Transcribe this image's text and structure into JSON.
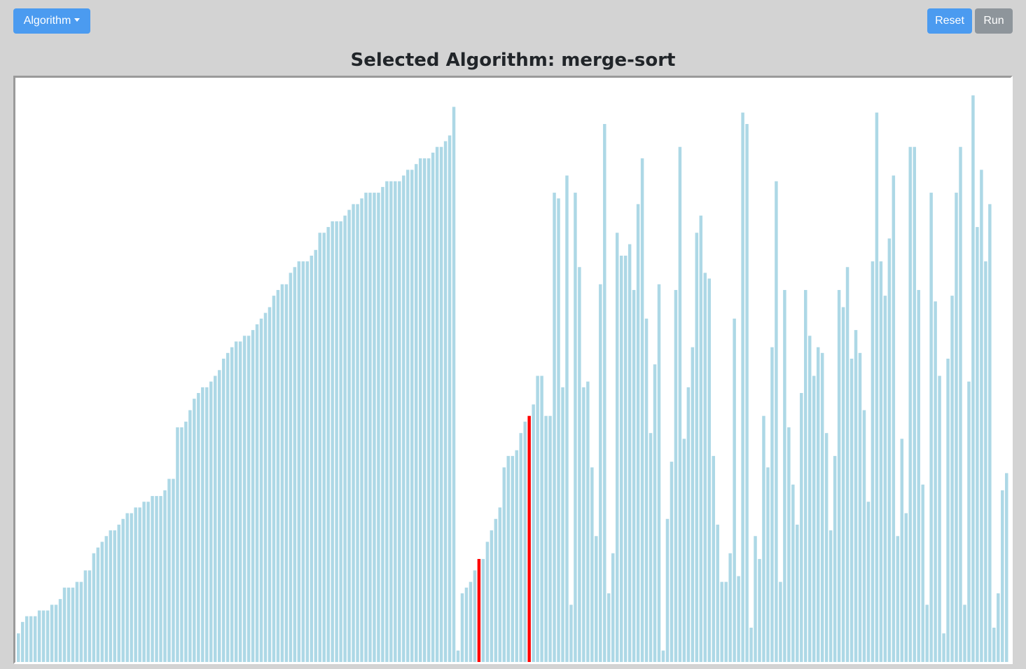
{
  "toolbar": {
    "algorithm_label": "Algorithm",
    "reset_label": "Reset",
    "run_label": "Run"
  },
  "header": {
    "title": "Selected Algorithm: merge-sort"
  },
  "colors": {
    "bar": "#add8e6",
    "bar_active": "#ff0000",
    "primary": "#4b9bf0",
    "secondary": "#8e959b",
    "background": "#d3d3d3"
  },
  "chart_data": {
    "type": "bar",
    "ylim": [
      0,
      100
    ],
    "highlighted_indices": [
      110,
      122
    ],
    "values": [
      5,
      7,
      8,
      8,
      8,
      9,
      9,
      9,
      10,
      10,
      11,
      13,
      13,
      13,
      14,
      14,
      16,
      16,
      19,
      20,
      21,
      22,
      23,
      23,
      24,
      25,
      26,
      26,
      27,
      27,
      28,
      28,
      29,
      29,
      29,
      30,
      32,
      32,
      41,
      41,
      42,
      44,
      46,
      47,
      48,
      48,
      49,
      50,
      51,
      53,
      54,
      55,
      56,
      56,
      57,
      57,
      58,
      59,
      60,
      61,
      62,
      64,
      65,
      66,
      66,
      68,
      69,
      70,
      70,
      70,
      71,
      72,
      75,
      75,
      76,
      77,
      77,
      77,
      78,
      79,
      80,
      80,
      81,
      82,
      82,
      82,
      82,
      83,
      84,
      84,
      84,
      84,
      85,
      86,
      86,
      87,
      88,
      88,
      88,
      89,
      90,
      90,
      91,
      92,
      97,
      2,
      12,
      13,
      14,
      16,
      18,
      18,
      21,
      23,
      25,
      27,
      34,
      36,
      36,
      37,
      40,
      42,
      43,
      45,
      50,
      50,
      43,
      43,
      82,
      81,
      48,
      85,
      10,
      82,
      69,
      48,
      49,
      34,
      22,
      66,
      94,
      12,
      19,
      75,
      71,
      71,
      73,
      65,
      80,
      88,
      60,
      40,
      52,
      66,
      2,
      25,
      35,
      65,
      90,
      39,
      48,
      55,
      75,
      78,
      68,
      67,
      36,
      24,
      14,
      14,
      19,
      60,
      15,
      96,
      94,
      6,
      22,
      18,
      43,
      34,
      55,
      84,
      14,
      65,
      41,
      31,
      24,
      47,
      65,
      57,
      50,
      55,
      54,
      40,
      23,
      36,
      65,
      62,
      69,
      53,
      58,
      54,
      44,
      28,
      70,
      96,
      70,
      64,
      74,
      85,
      22,
      39,
      26,
      90,
      90,
      65,
      31,
      10,
      82,
      63,
      50,
      5,
      53,
      64,
      82,
      90,
      10,
      49,
      99,
      76,
      86,
      70,
      80,
      6,
      12,
      30,
      33
    ]
  }
}
